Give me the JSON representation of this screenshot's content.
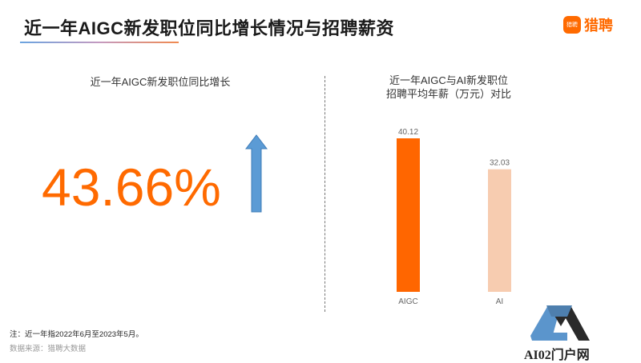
{
  "header": {
    "title": "近一年AIGC新发职位同比增长情况与招聘薪资",
    "logo_icon_text": "猎聘",
    "logo_text": "猎聘"
  },
  "left": {
    "subtitle": "近一年AIGC新发职位同比增长",
    "value": "43.66%",
    "icon": "arrow-up-icon"
  },
  "chart_data": {
    "type": "bar",
    "title": "近一年AIGC与AI新发职位招聘平均年薪（万元）对比",
    "title_lines": [
      "近一年AIGC与AI新发职位",
      "招聘平均年薪（万元）对比"
    ],
    "categories": [
      "AIGC",
      "AI"
    ],
    "values": [
      40.12,
      32.03
    ],
    "value_labels": [
      "40.12",
      "32.03"
    ],
    "colors": [
      "#ff6600",
      "#f7ccb0"
    ],
    "ylim": [
      0,
      40.12
    ],
    "grid": false
  },
  "footer": {
    "note": "注：近一年指2022年6月至2023年5月。",
    "source": "数据来源：猎聘大数据"
  },
  "watermark": {
    "text": "AI02门户网"
  }
}
